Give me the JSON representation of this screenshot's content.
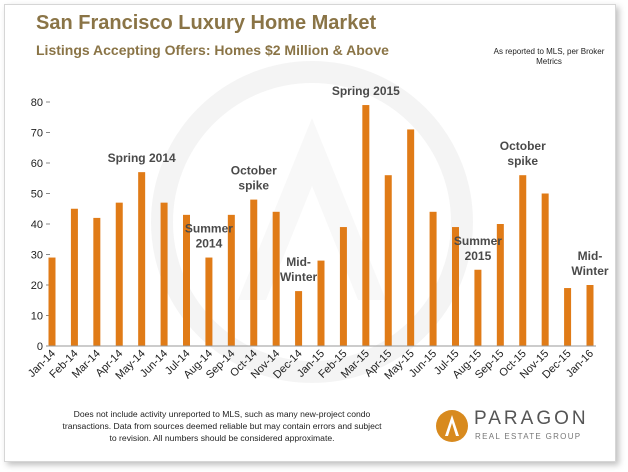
{
  "header": {
    "title": "San Francisco Luxury Home Market",
    "subtitle": "Listings Accepting Offers: Homes $2 Million & Above"
  },
  "source_note": "As reported to MLS, per Broker Metrics",
  "footnote": "Does not include activity unreported to MLS, such as many new-project condo transactions. Data from sources deemed reliable but may contain errors and subject to revision. All numbers should be considered approximate.",
  "logo": {
    "name": "PARAGON",
    "tagline": "REAL ESTATE GROUP",
    "icon": "paragon-logo-icon",
    "color": "#d88a1e"
  },
  "colors": {
    "bar": "#e07b17",
    "title": "#8a7446",
    "annotation": "#4a4a4a"
  },
  "chart_data": {
    "type": "bar",
    "categories": [
      "Jan-14",
      "Feb-14",
      "Mar-14",
      "Apr-14",
      "May-14",
      "Jun-14",
      "Jul-14",
      "Aug-14",
      "Sep-14",
      "Oct-14",
      "Nov-14",
      "Dec-14",
      "Jan-15",
      "Feb-15",
      "Mar-15",
      "Apr-15",
      "May-15",
      "Jun-15",
      "Jul-15",
      "Aug-15",
      "Sep-15",
      "Oct-15",
      "Nov-15",
      "Dec-15",
      "Jan-16"
    ],
    "values": [
      29,
      45,
      42,
      47,
      57,
      47,
      43,
      29,
      43,
      48,
      44,
      18,
      28,
      39,
      79,
      56,
      71,
      44,
      39,
      25,
      40,
      56,
      50,
      19,
      20
    ],
    "title": "Listings Accepting Offers: Homes $2 Million & Above",
    "xlabel": "",
    "ylabel": "",
    "ylim": [
      0,
      80
    ],
    "yticks": [
      0,
      10,
      20,
      30,
      40,
      50,
      60,
      70,
      80
    ],
    "grid": false,
    "legend": "none",
    "annotations": [
      {
        "text": [
          "Spring 2014"
        ],
        "x": "May-14"
      },
      {
        "text": [
          "Summer",
          "2014"
        ],
        "x": "Aug-14"
      },
      {
        "text": [
          "October",
          "spike"
        ],
        "x": "Oct-14"
      },
      {
        "text": [
          "Mid-",
          "Winter"
        ],
        "x": "Dec-14"
      },
      {
        "text": [
          "Spring 2015"
        ],
        "x": "Mar-15"
      },
      {
        "text": [
          "Summer",
          "2015"
        ],
        "x": "Aug-15"
      },
      {
        "text": [
          "October",
          "spike"
        ],
        "x": "Oct-15"
      },
      {
        "text": [
          "Mid-",
          "Winter"
        ],
        "x": "Jan-16"
      }
    ]
  }
}
